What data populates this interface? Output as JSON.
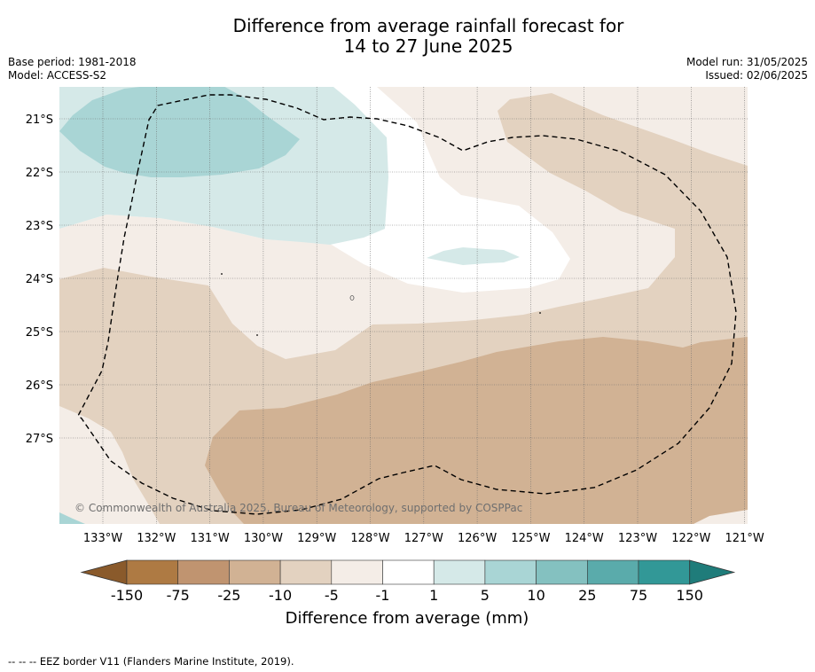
{
  "title": {
    "line1": "Difference from average rainfall forecast for",
    "line2": "14 to 27 June 2025"
  },
  "meta_left": {
    "base_period": "Base period: 1981-2018",
    "model": "Model: ACCESS-S2"
  },
  "meta_right": {
    "model_run": "Model run: 31/05/2025",
    "issued": "Issued: 02/06/2025"
  },
  "map": {
    "lat_labels": [
      "21°S",
      "22°S",
      "23°S",
      "24°S",
      "25°S",
      "26°S",
      "27°S"
    ],
    "lon_labels": [
      "133°W",
      "132°W",
      "131°W",
      "130°W",
      "129°W",
      "128°W",
      "127°W",
      "126°W",
      "125°W",
      "124°W",
      "123°W",
      "122°W",
      "121°W"
    ],
    "copyright": "© Commonwealth of Australia 2025, Bureau of Meteorology, supported by COSPPac",
    "eez_border_style": "dashed black"
  },
  "colorbar": {
    "ticks": [
      "-150",
      "-75",
      "-25",
      "-10",
      "-5",
      "-1",
      "1",
      "5",
      "10",
      "25",
      "75",
      "150"
    ],
    "colors": [
      "#8a5a2b",
      "#ae7a43",
      "#c09470",
      "#d1b294",
      "#e3d2c0",
      "#f4ede7",
      "#ffffff",
      "#d5e9e8",
      "#a9d5d5",
      "#84c1c0",
      "#5aabab",
      "#329897",
      "#1f7c7a"
    ],
    "label": "Difference from average (mm)"
  },
  "footer": "--  --  -- EEZ border V11 (Flanders Marine Institute, 2019)."
}
